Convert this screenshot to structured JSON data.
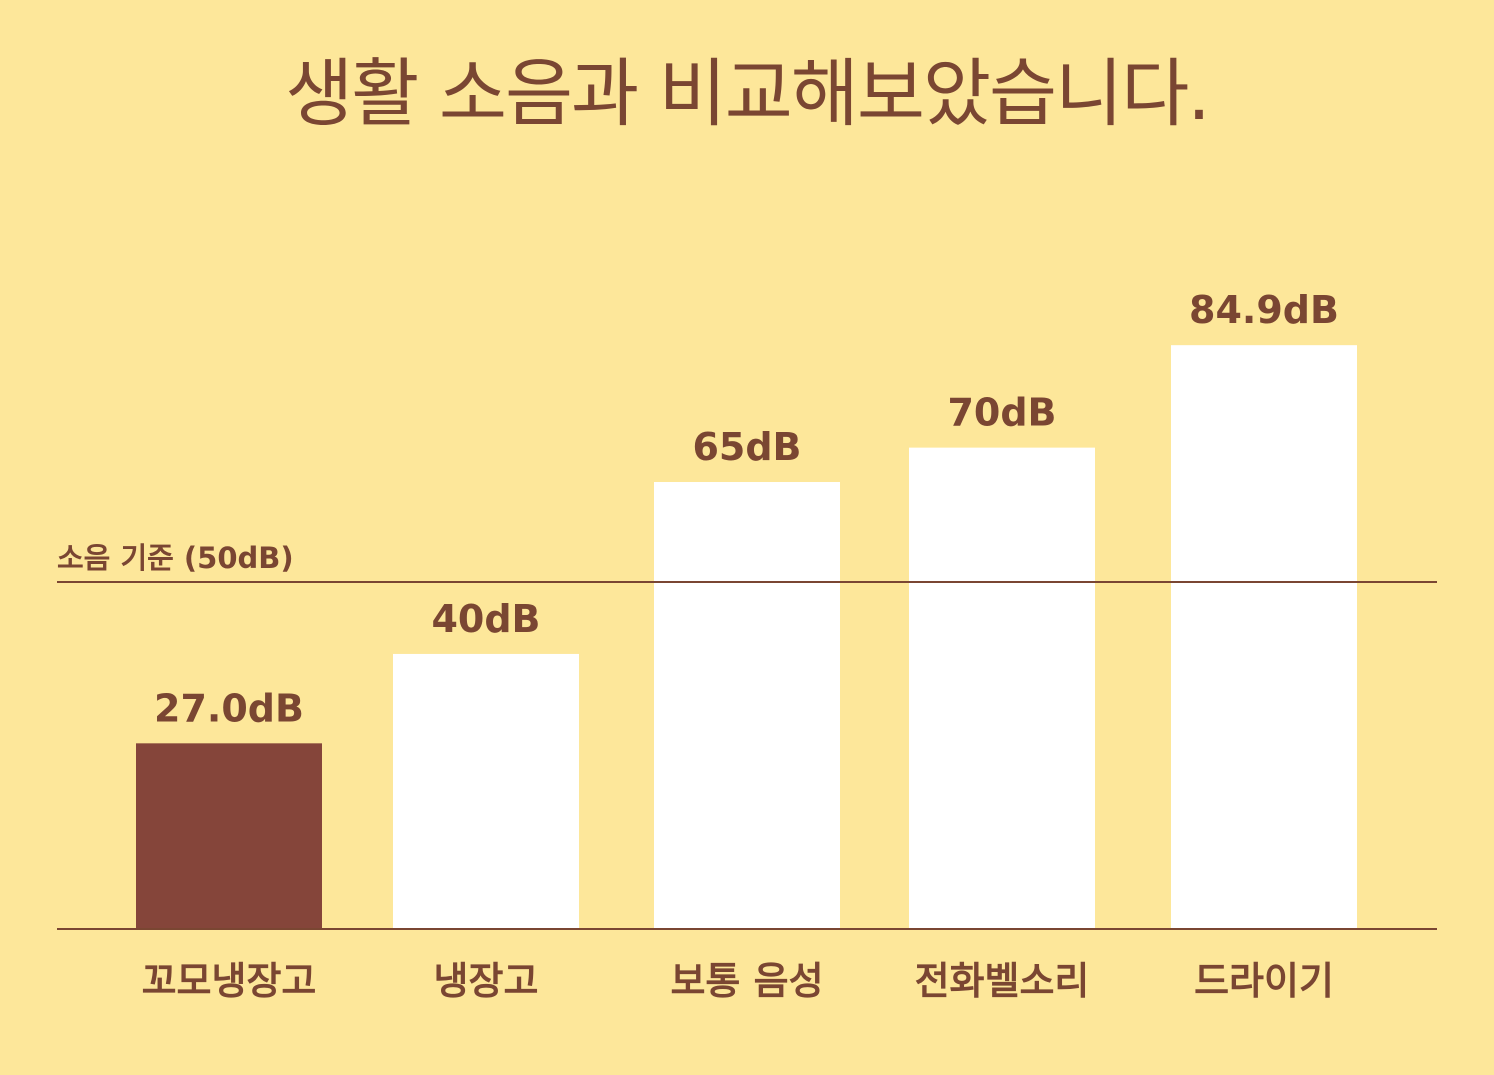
{
  "chart_data": {
    "type": "bar",
    "title": "생활 소음과 비교해보았습니다.",
    "categories": [
      "꼬모냉장고",
      "냉장고",
      "보통 음성",
      "전화벨소리",
      "드라이기"
    ],
    "values": [
      27.0,
      40,
      65,
      70,
      84.9
    ],
    "value_labels": [
      "27.0dB",
      "40dB",
      "65dB",
      "70dB",
      "84.9dB"
    ],
    "highlight_index": 0,
    "reference_line": {
      "value": 50,
      "label": "소음 기준 (50dB)"
    },
    "ylim": [
      0,
      100
    ],
    "grid": false,
    "legend": "none",
    "colors": {
      "background": "#FDE79A",
      "bar": "#FFFFFF",
      "highlight_bar": "#85453A",
      "text": "#7A4632",
      "line": "#7A4632"
    }
  }
}
